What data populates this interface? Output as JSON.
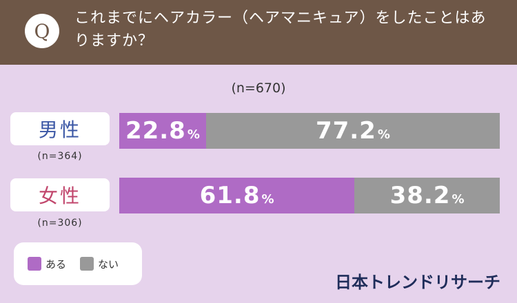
{
  "header": {
    "badge": "Q",
    "question": "これまでにヘアカラー（ヘアマニキュア）をしたことはありますか？"
  },
  "chart_data": {
    "type": "bar",
    "orientation": "horizontal-stacked-100",
    "total_n": "(n=670)",
    "categories": [
      "男性",
      "女性"
    ],
    "category_n": [
      "(n=364)",
      "(n=306)"
    ],
    "category_colors": [
      "#3b57a5",
      "#c1466c"
    ],
    "series": [
      {
        "name": "ある",
        "color": "#af6bc5",
        "values": [
          22.8,
          61.8
        ]
      },
      {
        "name": "ない",
        "color": "#999999",
        "values": [
          77.2,
          38.2
        ]
      }
    ],
    "unit": "%",
    "xlim": [
      0,
      100
    ],
    "legend_position": "bottom-left"
  },
  "brand": "日本トレンドリサーチ"
}
